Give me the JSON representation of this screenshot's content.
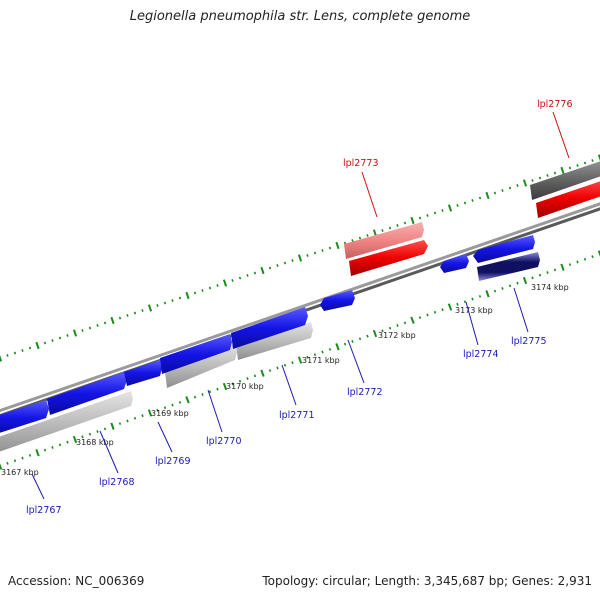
{
  "title": "Legionella pneumophila str. Lens, complete genome",
  "footer": {
    "accession": "Accession: NC_006369",
    "summary": "Topology: circular; Length: 3,345,687 bp; Genes: 2,931"
  },
  "colors": {
    "forward_gene": "#1414e6",
    "reverse_gene": "#ee0000",
    "reverse_gene_light": "#f08585",
    "rna_gray": "#bcbcbc",
    "rna_dark": "#666666",
    "backbone": "#7a7a7a",
    "tick_green": "#1a8a1a",
    "label_forward": "#1a1ab4",
    "label_reverse": "#cc1010"
  },
  "scale_ticks": [
    {
      "label": "3167 kbp"
    },
    {
      "label": "3168 kbp"
    },
    {
      "label": "3169 kbp"
    },
    {
      "label": "3170 kbp"
    },
    {
      "label": "3171 kbp"
    },
    {
      "label": "3172 kbp"
    },
    {
      "label": "3173 kbp"
    },
    {
      "label": "3174 kbp"
    }
  ],
  "genes": [
    {
      "id": "lpl2767",
      "label": "lpl2767",
      "strand": "forward"
    },
    {
      "id": "lpl2768",
      "label": "lpl2768",
      "strand": "forward"
    },
    {
      "id": "lpl2769",
      "label": "lpl2769",
      "strand": "forward"
    },
    {
      "id": "lpl2770",
      "label": "lpl2770",
      "strand": "forward"
    },
    {
      "id": "lpl2771",
      "label": "lpl2771",
      "strand": "forward"
    },
    {
      "id": "lpl2772",
      "label": "lpl2772",
      "strand": "forward"
    },
    {
      "id": "lpl2773",
      "label": "lpl2773",
      "strand": "reverse"
    },
    {
      "id": "lpl2774",
      "label": "lpl2774",
      "strand": "forward"
    },
    {
      "id": "lpl2775",
      "label": "lpl2775",
      "strand": "forward"
    },
    {
      "id": "lpl2776",
      "label": "lpl2776",
      "strand": "reverse"
    }
  ]
}
